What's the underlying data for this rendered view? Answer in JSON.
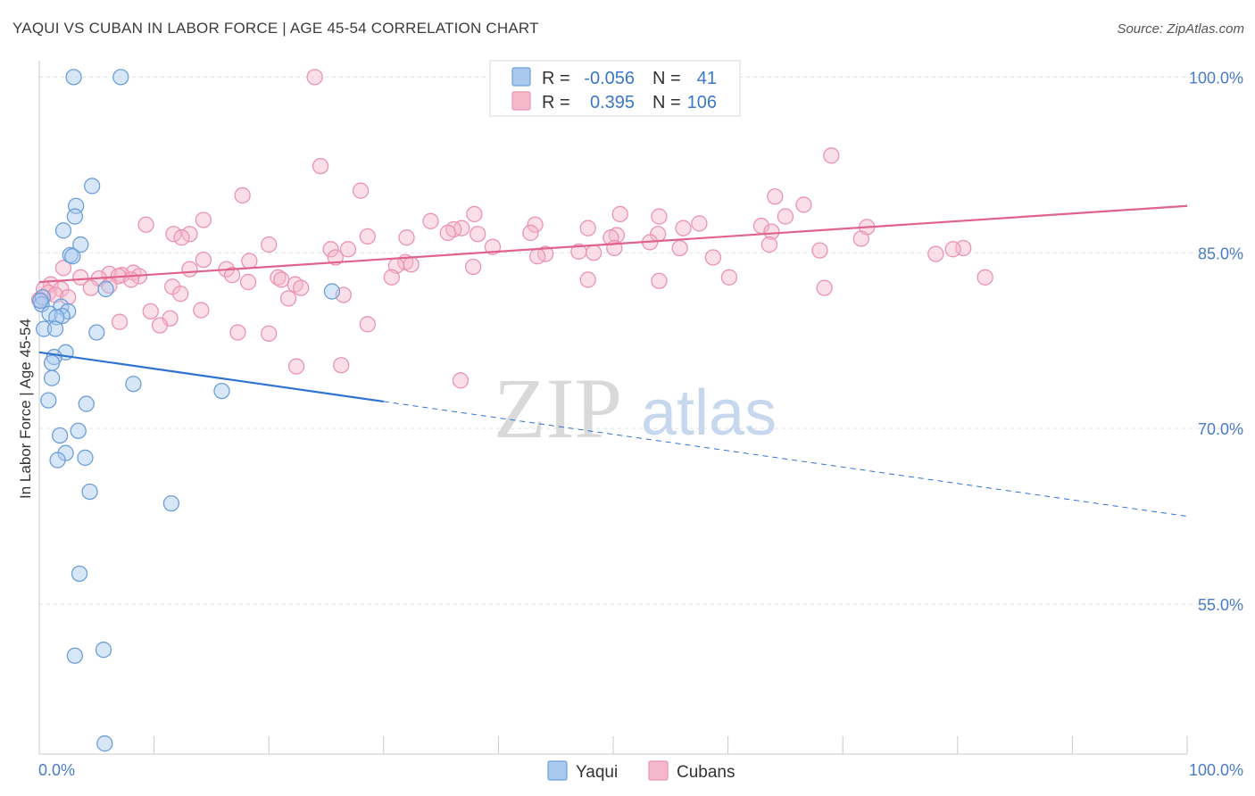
{
  "header": {
    "title": "YAQUI VS CUBAN IN LABOR FORCE | AGE 45-54 CORRELATION CHART",
    "source": "Source: ZipAtlas.com"
  },
  "colors": {
    "yaqui_fill": "#a9c9ef",
    "yaqui_stroke": "#6e9fd9",
    "yaqui_line": "#2f72d0",
    "cubans_fill": "#f5b8cb",
    "cubans_stroke": "#eb94b1",
    "cubans_line": "#e0638f",
    "tick_text": "#4a7bc8",
    "grid": "#dde3ea"
  },
  "legend": {
    "r_label": "R =",
    "n_label": "N =",
    "yaqui_r": "-0.056",
    "yaqui_n": "41",
    "cubans_r": "0.395",
    "cubans_n": "106"
  },
  "watermark": {
    "zip": "ZIP",
    "atlas": "atlas"
  },
  "chart_data": {
    "type": "scatter",
    "title": "YAQUI VS CUBAN IN LABOR FORCE | AGE 45-54 CORRELATION CHART",
    "xlabel": "",
    "ylabel": "In Labor Force | Age 45-54",
    "xlim": [
      0,
      100
    ],
    "ylim": [
      42.2,
      101.4
    ],
    "x_tick_labels": {
      "left": "0.0%",
      "right": "100.0%"
    },
    "y_ticks": [
      {
        "value": 100,
        "label": "100.0%"
      },
      {
        "value": 85,
        "label": "85.0%"
      },
      {
        "value": 70,
        "label": "70.0%"
      },
      {
        "value": 55,
        "label": "55.0%"
      }
    ],
    "grid": true,
    "series": [
      {
        "name": "Yaqui",
        "r": -0.056,
        "n": 41,
        "trend": {
          "x0": 0,
          "y0": 76.5,
          "x_solid_end": 30,
          "y_solid_end": 72.3,
          "x1": 100,
          "y1": 62.5
        },
        "points": [
          [
            3.0,
            100.0
          ],
          [
            7.1,
            100.0
          ],
          [
            4.6,
            90.7
          ],
          [
            3.2,
            89.0
          ],
          [
            3.1,
            88.1
          ],
          [
            2.1,
            86.9
          ],
          [
            3.6,
            85.7
          ],
          [
            2.7,
            84.8
          ],
          [
            2.9,
            84.7
          ],
          [
            5.8,
            81.9
          ],
          [
            25.5,
            81.7
          ],
          [
            0.3,
            81.2
          ],
          [
            0.2,
            80.6
          ],
          [
            1.9,
            80.4
          ],
          [
            2.5,
            80.0
          ],
          [
            0.9,
            79.8
          ],
          [
            2.0,
            79.6
          ],
          [
            1.5,
            79.5
          ],
          [
            0.4,
            78.5
          ],
          [
            1.4,
            78.5
          ],
          [
            5.0,
            78.2
          ],
          [
            2.3,
            76.5
          ],
          [
            1.3,
            76.1
          ],
          [
            1.1,
            75.6
          ],
          [
            1.1,
            74.3
          ],
          [
            8.2,
            73.8
          ],
          [
            15.9,
            73.2
          ],
          [
            0.8,
            72.4
          ],
          [
            4.1,
            72.1
          ],
          [
            3.4,
            69.8
          ],
          [
            1.8,
            69.4
          ],
          [
            2.3,
            67.9
          ],
          [
            4.0,
            67.5
          ],
          [
            1.6,
            67.3
          ],
          [
            4.4,
            64.6
          ],
          [
            11.5,
            63.6
          ],
          [
            3.5,
            57.6
          ],
          [
            5.6,
            51.1
          ],
          [
            3.1,
            50.6
          ],
          [
            5.7,
            43.1
          ],
          [
            0.1,
            80.9
          ]
        ]
      },
      {
        "name": "Cubans",
        "r": 0.395,
        "n": 106,
        "trend": {
          "x0": 0,
          "y0": 82.5,
          "x1": 100,
          "y1": 89.0
        },
        "points": [
          [
            24.0,
            100.0
          ],
          [
            69.0,
            93.3
          ],
          [
            24.5,
            92.4
          ],
          [
            28.0,
            90.3
          ],
          [
            17.7,
            89.9
          ],
          [
            64.1,
            89.8
          ],
          [
            66.6,
            89.1
          ],
          [
            37.9,
            88.3
          ],
          [
            50.6,
            88.3
          ],
          [
            54.0,
            88.1
          ],
          [
            65.0,
            88.1
          ],
          [
            34.1,
            87.7
          ],
          [
            14.3,
            87.8
          ],
          [
            57.5,
            87.5
          ],
          [
            43.2,
            87.4
          ],
          [
            9.3,
            87.4
          ],
          [
            62.9,
            87.3
          ],
          [
            72.1,
            87.2
          ],
          [
            36.8,
            87.1
          ],
          [
            47.8,
            87.1
          ],
          [
            56.1,
            87.1
          ],
          [
            36.1,
            87.0
          ],
          [
            63.8,
            86.8
          ],
          [
            35.6,
            86.7
          ],
          [
            42.8,
            86.7
          ],
          [
            38.2,
            86.6
          ],
          [
            13.1,
            86.6
          ],
          [
            11.7,
            86.6
          ],
          [
            53.9,
            86.6
          ],
          [
            50.3,
            86.5
          ],
          [
            28.6,
            86.4
          ],
          [
            12.4,
            86.3
          ],
          [
            32.0,
            86.3
          ],
          [
            49.8,
            86.3
          ],
          [
            71.6,
            86.2
          ],
          [
            53.2,
            85.9
          ],
          [
            20.0,
            85.7
          ],
          [
            63.6,
            85.7
          ],
          [
            39.5,
            85.5
          ],
          [
            55.8,
            85.4
          ],
          [
            50.1,
            85.4
          ],
          [
            80.5,
            85.4
          ],
          [
            25.4,
            85.3
          ],
          [
            26.9,
            85.3
          ],
          [
            79.6,
            85.3
          ],
          [
            68.0,
            85.2
          ],
          [
            47.0,
            85.1
          ],
          [
            48.3,
            85.0
          ],
          [
            44.1,
            84.9
          ],
          [
            78.1,
            84.9
          ],
          [
            43.4,
            84.7
          ],
          [
            58.7,
            84.6
          ],
          [
            25.8,
            84.6
          ],
          [
            14.3,
            84.4
          ],
          [
            18.3,
            84.3
          ],
          [
            31.9,
            84.2
          ],
          [
            32.4,
            84.0
          ],
          [
            31.1,
            83.9
          ],
          [
            37.8,
            83.8
          ],
          [
            2.1,
            83.7
          ],
          [
            13.1,
            83.6
          ],
          [
            16.3,
            83.6
          ],
          [
            8.2,
            83.3
          ],
          [
            6.1,
            83.2
          ],
          [
            7.2,
            83.1
          ],
          [
            16.8,
            83.1
          ],
          [
            6.9,
            83.0
          ],
          [
            8.7,
            83.0
          ],
          [
            3.6,
            82.9
          ],
          [
            20.8,
            82.9
          ],
          [
            30.7,
            82.9
          ],
          [
            82.4,
            82.9
          ],
          [
            5.2,
            82.8
          ],
          [
            8.0,
            82.7
          ],
          [
            21.1,
            82.7
          ],
          [
            18.2,
            82.5
          ],
          [
            1.0,
            82.3
          ],
          [
            22.3,
            82.3
          ],
          [
            6.1,
            82.2
          ],
          [
            11.6,
            82.1
          ],
          [
            4.5,
            82.0
          ],
          [
            22.8,
            82.0
          ],
          [
            68.4,
            82.0
          ],
          [
            0.4,
            81.9
          ],
          [
            1.9,
            81.9
          ],
          [
            0.8,
            81.6
          ],
          [
            12.3,
            81.5
          ],
          [
            26.5,
            81.4
          ],
          [
            1.4,
            81.4
          ],
          [
            2.5,
            81.2
          ],
          [
            21.7,
            81.1
          ],
          [
            0.0,
            81.0
          ],
          [
            14.1,
            80.1
          ],
          [
            9.7,
            80.0
          ],
          [
            11.4,
            79.4
          ],
          [
            7.0,
            79.1
          ],
          [
            10.5,
            78.8
          ],
          [
            28.6,
            78.9
          ],
          [
            17.3,
            78.2
          ],
          [
            20.0,
            78.1
          ],
          [
            26.3,
            75.4
          ],
          [
            22.4,
            75.3
          ],
          [
            36.7,
            74.1
          ],
          [
            60.1,
            82.9
          ],
          [
            54.0,
            82.6
          ],
          [
            47.8,
            82.7
          ]
        ]
      }
    ]
  },
  "bottom_legend": {
    "yaqui": "Yaqui",
    "cubans": "Cubans"
  }
}
